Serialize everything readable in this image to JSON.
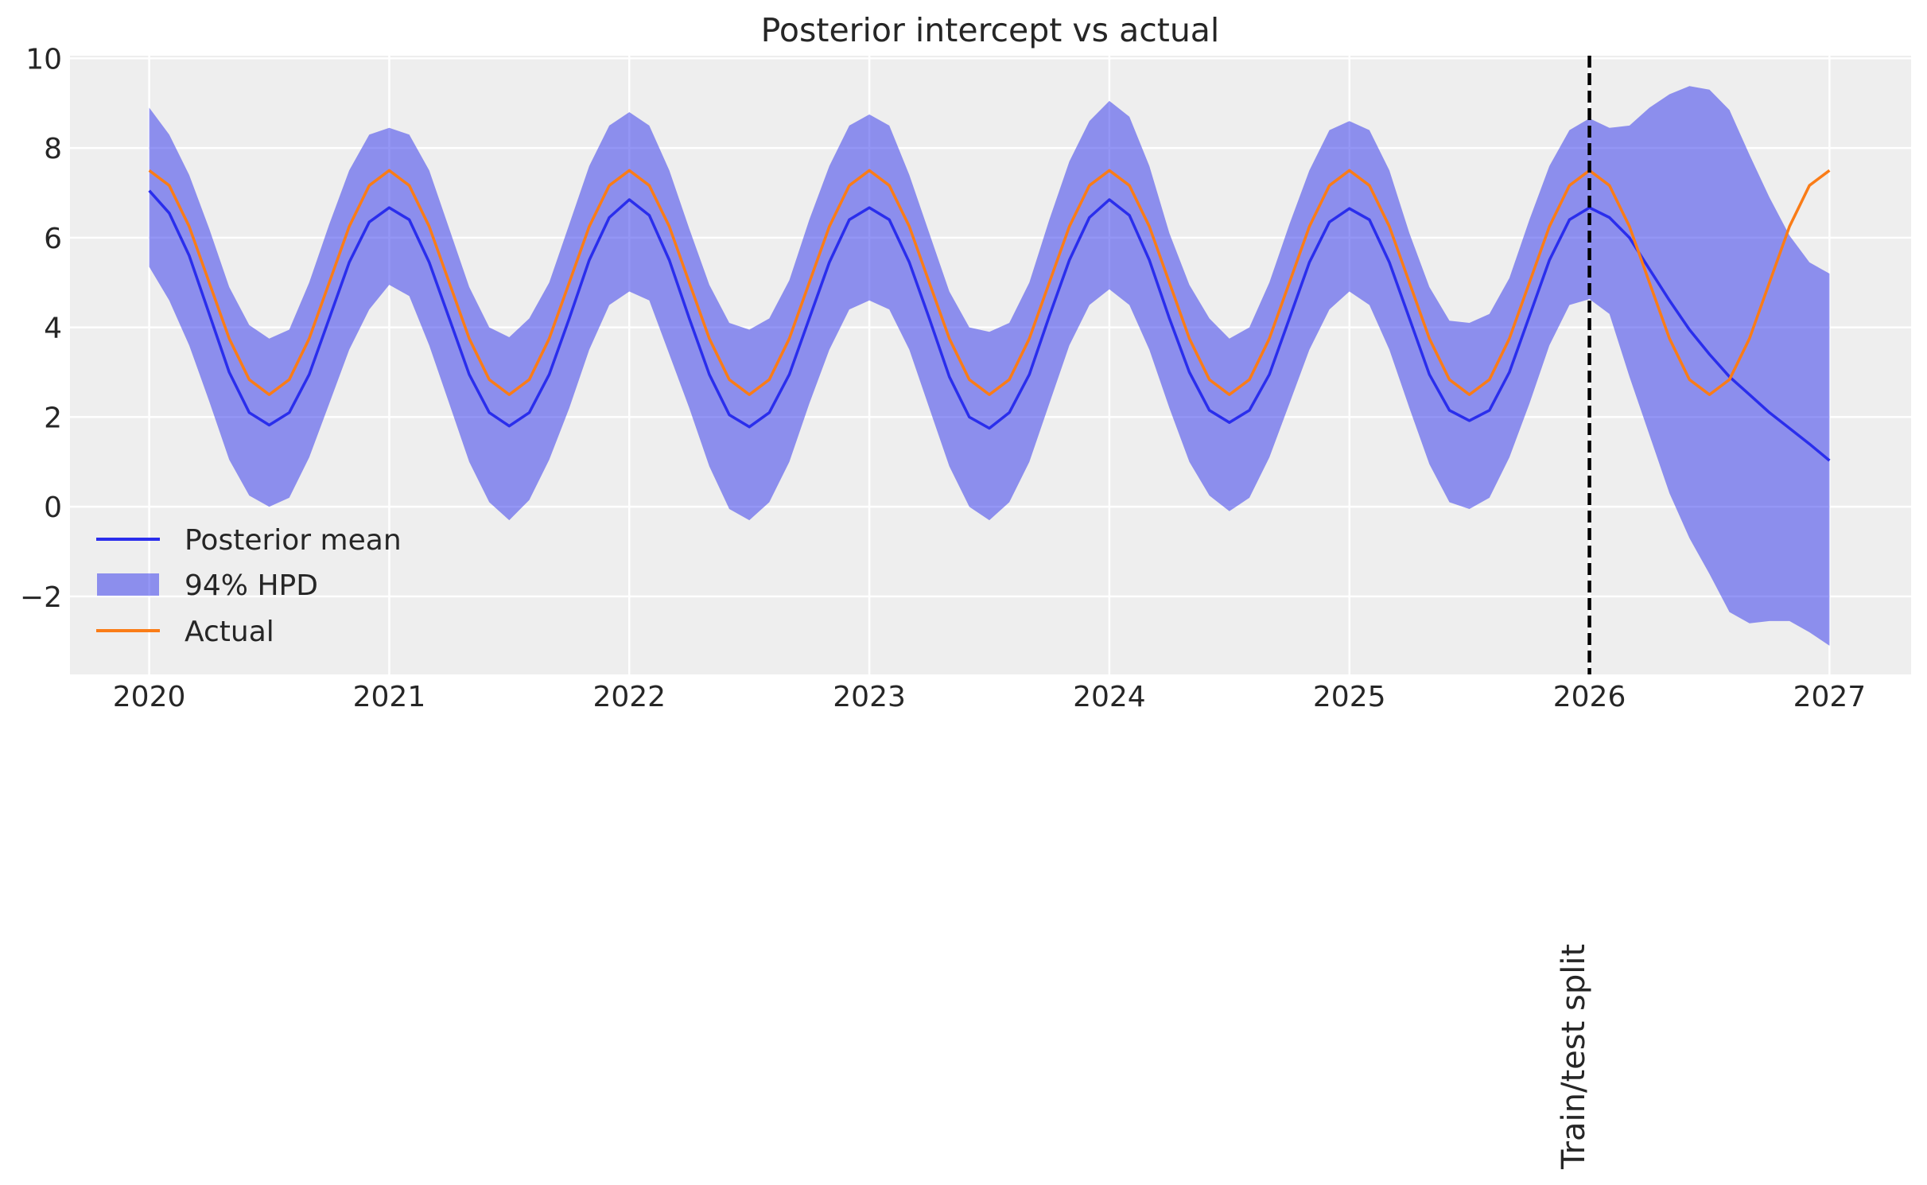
{
  "chart_data": {
    "type": "line",
    "title": "Posterior intercept vs actual",
    "xlabel": "",
    "ylabel": "",
    "xlim": [
      2019.67,
      2027.34
    ],
    "ylim": [
      -3.74,
      10.06
    ],
    "grid": true,
    "legend_position": "lower-left",
    "x_ticks": [
      "2020",
      "2021",
      "2022",
      "2023",
      "2024",
      "2025",
      "2026",
      "2027"
    ],
    "y_ticks": [
      "10",
      "8",
      "6",
      "4",
      "2",
      "0",
      "−2"
    ],
    "y_tick_values": [
      10,
      8,
      6,
      4,
      2,
      0,
      -2
    ],
    "x": [
      "2020-01",
      "2020-02",
      "2020-03",
      "2020-04",
      "2020-05",
      "2020-06",
      "2020-07",
      "2020-08",
      "2020-09",
      "2020-10",
      "2020-11",
      "2020-12",
      "2021-01",
      "2021-02",
      "2021-03",
      "2021-04",
      "2021-05",
      "2021-06",
      "2021-07",
      "2021-08",
      "2021-09",
      "2021-10",
      "2021-11",
      "2021-12",
      "2022-01",
      "2022-02",
      "2022-03",
      "2022-04",
      "2022-05",
      "2022-06",
      "2022-07",
      "2022-08",
      "2022-09",
      "2022-10",
      "2022-11",
      "2022-12",
      "2023-01",
      "2023-02",
      "2023-03",
      "2023-04",
      "2023-05",
      "2023-06",
      "2023-07",
      "2023-08",
      "2023-09",
      "2023-10",
      "2023-11",
      "2023-12",
      "2024-01",
      "2024-02",
      "2024-03",
      "2024-04",
      "2024-05",
      "2024-06",
      "2024-07",
      "2024-08",
      "2024-09",
      "2024-10",
      "2024-11",
      "2024-12",
      "2025-01",
      "2025-02",
      "2025-03",
      "2025-04",
      "2025-05",
      "2025-06",
      "2025-07",
      "2025-08",
      "2025-09",
      "2025-10",
      "2025-11",
      "2025-12",
      "2026-01",
      "2026-02",
      "2026-03",
      "2026-04",
      "2026-05",
      "2026-06",
      "2026-07",
      "2026-08",
      "2026-09",
      "2026-10",
      "2026-11",
      "2026-12",
      "2027-01"
    ],
    "series": [
      {
        "name": "Posterior mean",
        "kind": "line",
        "color": "#2a2eec",
        "values": [
          7.05,
          6.55,
          5.6,
          4.3,
          3.0,
          2.1,
          1.82,
          2.1,
          2.95,
          4.2,
          5.45,
          6.35,
          6.67,
          6.4,
          5.45,
          4.2,
          2.95,
          2.1,
          1.8,
          2.1,
          2.95,
          4.2,
          5.5,
          6.45,
          6.85,
          6.5,
          5.5,
          4.2,
          2.95,
          2.05,
          1.78,
          2.1,
          2.95,
          4.2,
          5.45,
          6.4,
          6.67,
          6.4,
          5.45,
          4.2,
          2.9,
          2.0,
          1.75,
          2.1,
          2.95,
          4.25,
          5.5,
          6.45,
          6.85,
          6.5,
          5.5,
          4.2,
          3.0,
          2.15,
          1.88,
          2.15,
          2.95,
          4.2,
          5.45,
          6.35,
          6.65,
          6.4,
          5.45,
          4.2,
          2.95,
          2.15,
          1.92,
          2.15,
          3.0,
          4.25,
          5.5,
          6.4,
          6.67,
          6.45,
          6.0,
          5.3,
          4.6,
          3.95,
          3.4,
          2.9,
          2.5,
          2.1,
          1.75,
          1.4,
          1.03
        ]
      },
      {
        "name": "94% HPD",
        "kind": "band",
        "color": "#8a8ceb",
        "upper": [
          8.9,
          8.3,
          7.4,
          6.2,
          4.9,
          4.05,
          3.75,
          3.95,
          5.0,
          6.3,
          7.5,
          8.3,
          8.45,
          8.3,
          7.5,
          6.2,
          4.9,
          4.0,
          3.78,
          4.2,
          5.0,
          6.3,
          7.6,
          8.5,
          8.8,
          8.5,
          7.5,
          6.2,
          4.95,
          4.1,
          3.95,
          4.2,
          5.05,
          6.4,
          7.6,
          8.5,
          8.75,
          8.5,
          7.4,
          6.1,
          4.8,
          4.0,
          3.9,
          4.1,
          5.0,
          6.4,
          7.7,
          8.6,
          9.05,
          8.7,
          7.6,
          6.1,
          4.95,
          4.2,
          3.75,
          4.0,
          5.0,
          6.3,
          7.5,
          8.4,
          8.6,
          8.4,
          7.5,
          6.1,
          4.9,
          4.15,
          4.1,
          4.3,
          5.1,
          6.4,
          7.6,
          8.4,
          8.66,
          8.45,
          8.5,
          8.9,
          9.2,
          9.38,
          9.3,
          8.85,
          7.85,
          6.9,
          6.05,
          5.45,
          5.2
        ],
        "lower": [
          5.35,
          4.6,
          3.6,
          2.35,
          1.05,
          0.25,
          0.0,
          0.2,
          1.1,
          2.3,
          3.5,
          4.4,
          4.95,
          4.7,
          3.6,
          2.3,
          1.0,
          0.1,
          -0.3,
          0.15,
          1.05,
          2.2,
          3.5,
          4.5,
          4.8,
          4.6,
          3.4,
          2.2,
          0.9,
          -0.05,
          -0.3,
          0.1,
          1.0,
          2.3,
          3.5,
          4.4,
          4.6,
          4.4,
          3.5,
          2.2,
          0.9,
          0.0,
          -0.3,
          0.1,
          1.0,
          2.3,
          3.6,
          4.5,
          4.85,
          4.5,
          3.5,
          2.2,
          1.0,
          0.25,
          -0.1,
          0.2,
          1.1,
          2.3,
          3.5,
          4.4,
          4.8,
          4.5,
          3.5,
          2.2,
          0.95,
          0.1,
          -0.05,
          0.2,
          1.1,
          2.3,
          3.6,
          4.5,
          4.63,
          4.3,
          2.9,
          1.6,
          0.3,
          -0.7,
          -1.5,
          -2.35,
          -2.6,
          -2.55,
          -2.55,
          -2.8,
          -3.1
        ]
      },
      {
        "name": "Actual",
        "kind": "line",
        "color": "#fa7c17",
        "values": [
          7.5,
          7.165,
          6.25,
          5.0,
          3.75,
          2.835,
          2.5,
          2.835,
          3.75,
          5.0,
          6.25,
          7.165,
          7.5,
          7.165,
          6.25,
          5.0,
          3.75,
          2.835,
          2.5,
          2.835,
          3.75,
          5.0,
          6.25,
          7.165,
          7.5,
          7.165,
          6.25,
          5.0,
          3.75,
          2.835,
          2.5,
          2.835,
          3.75,
          5.0,
          6.25,
          7.165,
          7.5,
          7.165,
          6.25,
          5.0,
          3.75,
          2.835,
          2.5,
          2.835,
          3.75,
          5.0,
          6.25,
          7.165,
          7.5,
          7.165,
          6.25,
          5.0,
          3.75,
          2.835,
          2.5,
          2.835,
          3.75,
          5.0,
          6.25,
          7.165,
          7.5,
          7.165,
          6.25,
          5.0,
          3.75,
          2.835,
          2.5,
          2.835,
          3.75,
          5.0,
          6.25,
          7.165,
          7.5,
          7.165,
          6.25,
          5.0,
          3.75,
          2.835,
          2.5,
          2.835,
          3.75,
          5.0,
          6.25,
          7.165,
          7.5
        ]
      }
    ],
    "annotations": [
      {
        "type": "vline",
        "x": "2026-01",
        "style": "dashed",
        "color": "#000000",
        "label": "Train/test split"
      }
    ]
  },
  "legend": {
    "items": [
      "Posterior mean",
      "94% HPD",
      "Actual"
    ]
  }
}
